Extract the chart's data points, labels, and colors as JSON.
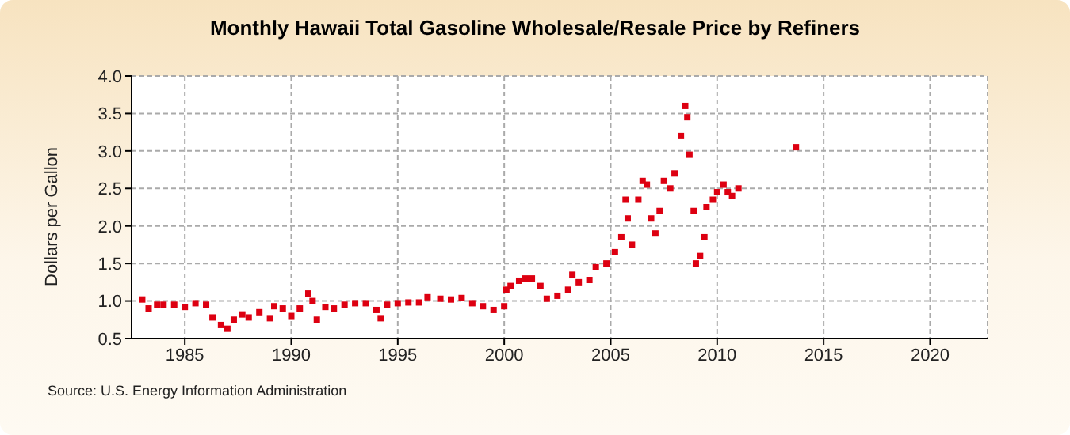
{
  "chart_data": {
    "type": "scatter",
    "title": "Monthly Hawaii Total Gasoline Wholesale/Resale Price by Refiners",
    "ylabel": "Dollars per Gallon",
    "annotations": [
      "Source: U.S. Energy Information Administration"
    ],
    "x": [
      1983.0,
      1983.3,
      1983.7,
      1984.0,
      1984.5,
      1985.0,
      1985.5,
      1986.0,
      1986.3,
      1986.7,
      1987.0,
      1987.3,
      1987.7,
      1988.0,
      1988.5,
      1989.0,
      1989.2,
      1989.6,
      1990.0,
      1990.4,
      1990.8,
      1991.0,
      1991.2,
      1991.6,
      1992.0,
      1992.5,
      1993.0,
      1993.5,
      1994.0,
      1994.2,
      1994.5,
      1995.0,
      1995.5,
      1996.0,
      1996.4,
      1997.0,
      1997.5,
      1998.0,
      1998.5,
      1999.0,
      1999.5,
      2000.0,
      2000.1,
      2000.3,
      2000.7,
      2001.0,
      2001.3,
      2001.7,
      2002.0,
      2002.5,
      2003.0,
      2003.2,
      2003.5,
      2004.0,
      2004.3,
      2004.8,
      2005.2,
      2005.5,
      2005.7,
      2005.8,
      2006.0,
      2006.3,
      2006.5,
      2006.7,
      2006.9,
      2007.1,
      2007.3,
      2007.5,
      2007.8,
      2008.0,
      2008.3,
      2008.5,
      2008.6,
      2008.7,
      2008.9,
      2009.0,
      2009.2,
      2009.4,
      2009.5,
      2009.8,
      2010.0,
      2010.3,
      2010.5,
      2010.7,
      2011.0,
      2013.7
    ],
    "series": [
      {
        "color": "#dd0011",
        "values": [
          1.02,
          0.9,
          0.95,
          0.95,
          0.95,
          0.92,
          0.97,
          0.95,
          0.78,
          0.68,
          0.63,
          0.75,
          0.82,
          0.78,
          0.85,
          0.77,
          0.93,
          0.9,
          0.8,
          0.9,
          1.1,
          1.0,
          0.75,
          0.92,
          0.9,
          0.95,
          0.97,
          0.97,
          0.88,
          0.77,
          0.95,
          0.97,
          0.98,
          0.98,
          1.05,
          1.03,
          1.02,
          1.04,
          0.97,
          0.93,
          0.88,
          0.93,
          1.15,
          1.2,
          1.27,
          1.3,
          1.3,
          1.2,
          1.03,
          1.07,
          1.15,
          1.35,
          1.25,
          1.28,
          1.45,
          1.5,
          1.65,
          1.85,
          2.35,
          2.1,
          1.75,
          2.35,
          2.6,
          2.55,
          2.1,
          1.9,
          2.2,
          2.6,
          2.5,
          2.7,
          3.2,
          3.6,
          3.45,
          2.95,
          2.2,
          1.5,
          1.6,
          1.85,
          2.25,
          2.35,
          2.45,
          2.55,
          2.45,
          2.4,
          2.5,
          3.05
        ]
      }
    ],
    "xlim": [
      1982.5,
      2022.7
    ],
    "xticks": [
      1985,
      1990,
      1995,
      2000,
      2005,
      2010,
      2015,
      2020
    ],
    "ylim": [
      0.5,
      4.0
    ],
    "yticks": [
      {
        "value": 0.5,
        "label": "0.5"
      },
      {
        "value": 1,
        "label": "1.0"
      },
      {
        "value": 1.5,
        "label": "1.5"
      },
      {
        "value": 2,
        "label": "2.0"
      },
      {
        "value": 2.5,
        "label": "2.5"
      },
      {
        "value": 3,
        "label": "3.0"
      },
      {
        "value": 3.5,
        "label": "3.5"
      },
      {
        "value": 4,
        "label": "4.0"
      }
    ],
    "grid": true,
    "marker": "square",
    "legend": false
  }
}
